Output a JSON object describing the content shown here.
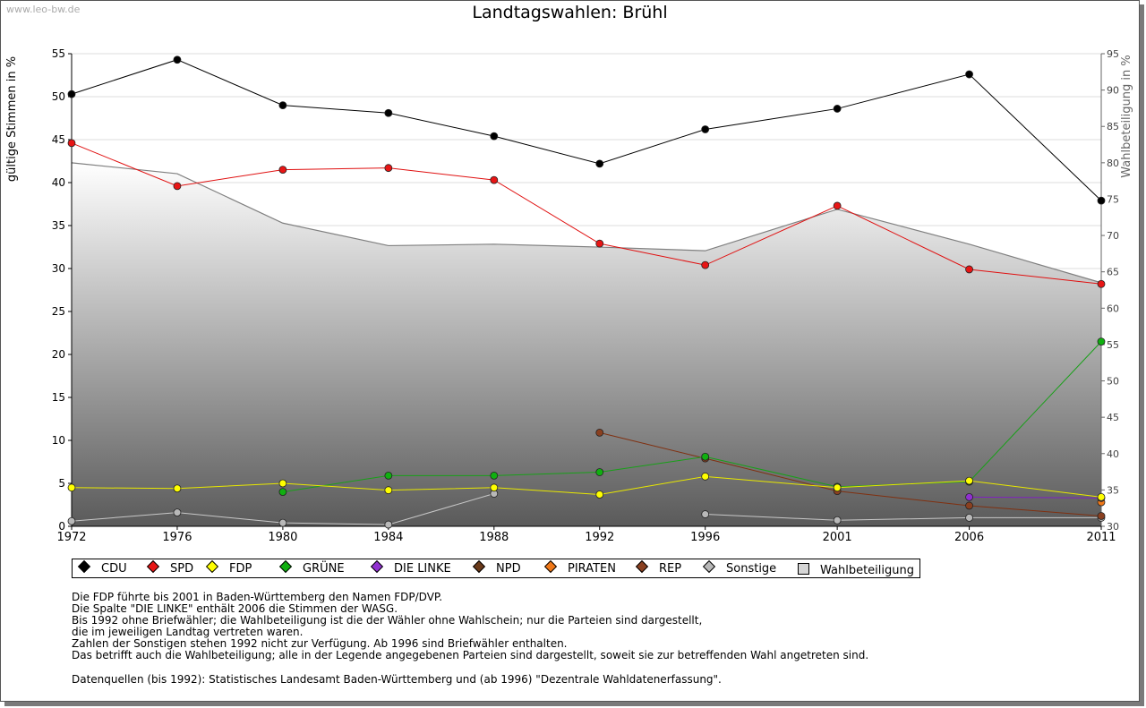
{
  "watermark": "www.leo-bw.de",
  "chart_data": {
    "type": "line",
    "title": "Landtagswahlen: Brühl",
    "ylabel": "gültige Stimmen in %",
    "y2label": "Wahlbeteiligung in %",
    "ylim": [
      0,
      55
    ],
    "y2lim": [
      30,
      95
    ],
    "yticks": [
      0,
      5,
      10,
      15,
      20,
      25,
      30,
      35,
      40,
      45,
      50,
      55
    ],
    "y2ticks": [
      30,
      35,
      40,
      45,
      50,
      55,
      60,
      65,
      70,
      75,
      80,
      85,
      90,
      95
    ],
    "x": [
      1972,
      1976,
      1980,
      1984,
      1988,
      1992,
      1996,
      2001,
      2006,
      2011
    ],
    "series": [
      {
        "name": "CDU",
        "color": "#000000",
        "marker": "#000000",
        "values": [
          50.3,
          54.3,
          49.0,
          48.1,
          45.4,
          42.2,
          46.2,
          48.6,
          52.6,
          37.9
        ]
      },
      {
        "name": "SPD",
        "color": "#e01010",
        "marker": "#e81515",
        "values": [
          44.6,
          39.6,
          41.5,
          41.7,
          40.3,
          32.9,
          30.4,
          37.3,
          29.9,
          28.2
        ]
      },
      {
        "name": "FDP",
        "color": "#e8e800",
        "marker": "#ffff00",
        "values": [
          4.5,
          4.4,
          5.0,
          4.2,
          4.5,
          3.7,
          5.8,
          4.5,
          5.3,
          3.4
        ]
      },
      {
        "name": "GRÜNE",
        "color": "#18a018",
        "marker": "#10b010",
        "values": [
          null,
          null,
          4.0,
          5.9,
          5.9,
          6.3,
          8.1,
          4.6,
          5.2,
          21.5
        ]
      },
      {
        "name": "DIE LINKE",
        "color": "#8020c0",
        "marker": "#9030d0",
        "values": [
          null,
          null,
          null,
          null,
          null,
          null,
          null,
          null,
          3.4,
          3.3
        ]
      },
      {
        "name": "NPD",
        "color": "#603010",
        "marker": "#6a3a1a",
        "values": [
          null,
          null,
          null,
          null,
          null,
          null,
          null,
          null,
          null,
          null
        ]
      },
      {
        "name": "PIRATEN",
        "color": "#e87010",
        "marker": "#f07818",
        "values": [
          null,
          null,
          null,
          null,
          null,
          null,
          null,
          null,
          null,
          2.8
        ]
      },
      {
        "name": "REP",
        "color": "#803010",
        "marker": "#8a4020",
        "values": [
          null,
          null,
          null,
          null,
          null,
          10.9,
          7.9,
          4.1,
          2.4,
          1.2
        ]
      },
      {
        "name": "Sonstige",
        "color": "#c8c8c8",
        "marker": "#b8b8b8",
        "values": [
          0.6,
          1.6,
          0.4,
          0.2,
          3.8,
          null,
          1.4,
          0.7,
          1.0,
          1.0
        ]
      }
    ],
    "turnout": {
      "name": "Wahlbeteiligung",
      "axis": "right",
      "values": [
        80.0,
        78.5,
        71.7,
        68.6,
        68.8,
        68.4,
        67.9,
        73.6,
        68.8,
        63.5
      ]
    }
  },
  "legend": [
    {
      "label": "CDU",
      "color": "#000000",
      "kind": "diamond"
    },
    {
      "label": "SPD",
      "color": "#e81515",
      "kind": "diamond"
    },
    {
      "label": "FDP",
      "color": "#ffff00",
      "kind": "diamond"
    },
    {
      "label": "GRÜNE",
      "color": "#10b010",
      "kind": "diamond"
    },
    {
      "label": "DIE LINKE",
      "color": "#9030d0",
      "kind": "diamond"
    },
    {
      "label": "NPD",
      "color": "#6a3a1a",
      "kind": "diamond"
    },
    {
      "label": "PIRATEN",
      "color": "#f07818",
      "kind": "diamond"
    },
    {
      "label": "REP",
      "color": "#8a4020",
      "kind": "diamond"
    },
    {
      "label": "Sonstige",
      "color": "#b8b8b8",
      "kind": "diamond"
    },
    {
      "label": "Wahlbeteiligung",
      "color": "#d6d6d6",
      "kind": "square"
    }
  ],
  "notes": [
    "Die FDP führte bis 2001 in Baden-Württemberg den Namen FDP/DVP.",
    "Die Spalte \"DIE LINKE\" enthält 2006 die Stimmen der WASG.",
    "Bis 1992 ohne Briefwähler; die Wahlbeteiligung ist die der Wähler ohne Wahlschein; nur die Parteien sind dargestellt,",
    "die im jeweiligen Landtag vertreten waren.",
    "Zahlen der Sonstigen stehen 1992 nicht zur Verfügung. Ab 1996 sind Briefwähler enthalten.",
    "Das betrifft auch die Wahlbeteiligung; alle in der Legende angegebenen Parteien sind dargestellt, soweit sie zur betreffenden Wahl angetreten sind."
  ],
  "source": "Datenquellen (bis 1992): Statistisches Landesamt Baden-Württemberg und (ab 1996) \"Dezentrale Wahldatenerfassung\"."
}
